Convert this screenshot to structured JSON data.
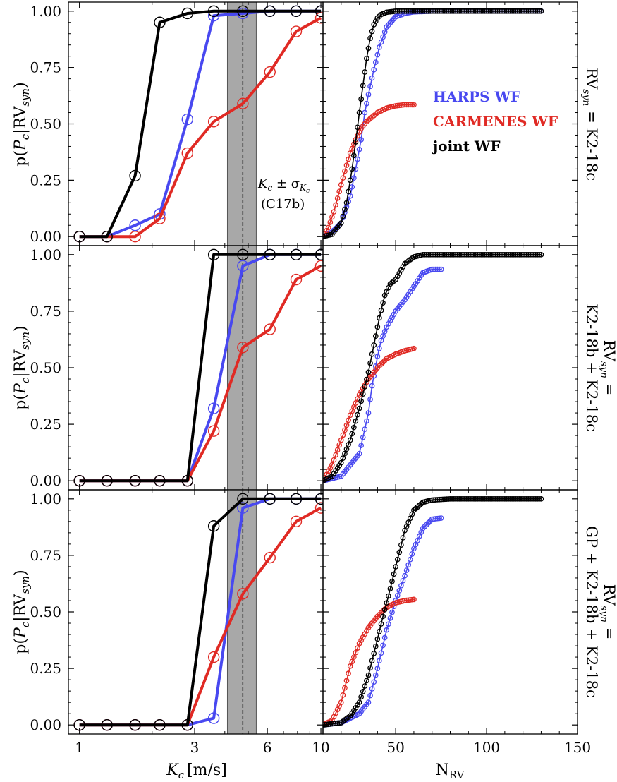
{
  "figure": {
    "left_xlabel": "K",
    "left_xlabel_sub": "c",
    "left_xlabel_unit": "[m/s]",
    "right_xlabel": "N",
    "right_xlabel_sub": "RV",
    "ylabel": {
      "p": "p(",
      "P": "P",
      "c": "c",
      "mid": "|RV",
      "syn": "syn",
      "close": ")"
    },
    "band_label_line1": {
      "K": "K",
      "c": "c",
      "pm": " ± σ",
      "Kc": "K",
      "c2": "c"
    },
    "band_label_line2": "(C17b)",
    "row_titles": [
      [
        "RV",
        "syn",
        " = K2-18c"
      ],
      [
        "RV",
        "syn",
        " =",
        "K2-18b + K2-18c"
      ],
      [
        "RV",
        "syn",
        " =",
        "GP + K2-18b + K2-18c"
      ]
    ]
  },
  "legend": [
    {
      "label": "HARPS WF",
      "color": "#4848f0"
    },
    {
      "label": "CARMENES WF",
      "color": "#e02a24"
    },
    {
      "label": "joint WF",
      "color": "#000000"
    }
  ],
  "chart_data": [
    {
      "type": "line",
      "panel": "left-top",
      "xscale": "log",
      "xlim": [
        0.9,
        10.2
      ],
      "ylim": [
        -0.04,
        1.04
      ],
      "xticks": [
        1,
        3,
        6,
        10
      ],
      "yticks": [
        "0.00",
        "0.25",
        "0.50",
        "0.75",
        "1.00"
      ],
      "band": [
        4.1,
        5.4
      ],
      "vline": 4.75,
      "series": [
        {
          "name": "HARPS WF",
          "color": "#4848f0",
          "x": [
            1.0,
            1.3,
            1.7,
            2.15,
            2.8,
            3.6,
            4.75,
            6.15,
            7.9,
            10.0
          ],
          "y": [
            0.0,
            0.0,
            0.05,
            0.1,
            0.52,
            0.98,
            0.99,
            1.0,
            1.0,
            1.0
          ]
        },
        {
          "name": "CARMENES WF",
          "color": "#e02a24",
          "x": [
            1.0,
            1.3,
            1.7,
            2.15,
            2.8,
            3.6,
            4.75,
            6.15,
            7.9,
            10.0
          ],
          "y": [
            0.0,
            0.0,
            0.0,
            0.08,
            0.37,
            0.51,
            0.59,
            0.73,
            0.91,
            0.97
          ]
        },
        {
          "name": "joint WF",
          "color": "#000000",
          "x": [
            1.0,
            1.3,
            1.7,
            2.15,
            2.8,
            3.6,
            4.75,
            6.15,
            7.9,
            10.0
          ],
          "y": [
            0.0,
            0.0,
            0.27,
            0.95,
            0.99,
            1.0,
            1.0,
            1.0,
            1.0,
            1.0
          ]
        }
      ]
    },
    {
      "type": "line",
      "panel": "left-middle",
      "xscale": "log",
      "xlim": [
        0.9,
        10.2
      ],
      "ylim": [
        -0.04,
        1.04
      ],
      "xticks": [
        1,
        3,
        6,
        10
      ],
      "yticks": [
        "0.00",
        "0.25",
        "0.50",
        "0.75",
        "1.00"
      ],
      "band": [
        4.1,
        5.4
      ],
      "vline": 4.75,
      "series": [
        {
          "name": "HARPS WF",
          "color": "#4848f0",
          "x": [
            1.0,
            1.3,
            1.7,
            2.15,
            2.8,
            3.6,
            4.75,
            6.15,
            7.9,
            10.0
          ],
          "y": [
            0.0,
            0.0,
            0.0,
            0.0,
            0.0,
            0.32,
            0.95,
            1.0,
            1.0,
            1.0
          ]
        },
        {
          "name": "CARMENES WF",
          "color": "#e02a24",
          "x": [
            1.0,
            1.3,
            1.7,
            2.15,
            2.8,
            3.6,
            4.75,
            6.15,
            7.9,
            10.0
          ],
          "y": [
            0.0,
            0.0,
            0.0,
            0.0,
            0.0,
            0.22,
            0.59,
            0.67,
            0.89,
            0.95
          ]
        },
        {
          "name": "joint WF",
          "color": "#000000",
          "x": [
            1.0,
            1.3,
            1.7,
            2.15,
            2.8,
            3.6,
            4.75,
            6.15,
            7.9,
            10.0
          ],
          "y": [
            0.0,
            0.0,
            0.0,
            0.0,
            0.0,
            1.0,
            1.0,
            1.0,
            1.0,
            1.0
          ]
        }
      ]
    },
    {
      "type": "line",
      "panel": "left-bottom",
      "xscale": "log",
      "xlim": [
        0.9,
        10.2
      ],
      "ylim": [
        -0.04,
        1.04
      ],
      "xticks": [
        1,
        3,
        6,
        10
      ],
      "yticks": [
        "0.00",
        "0.25",
        "0.50",
        "0.75",
        "1.00"
      ],
      "band": [
        4.1,
        5.4
      ],
      "vline": 4.75,
      "series": [
        {
          "name": "HARPS WF",
          "color": "#4848f0",
          "x": [
            1.0,
            1.3,
            1.7,
            2.15,
            2.8,
            3.6,
            4.75,
            6.15,
            7.9,
            10.0
          ],
          "y": [
            0.0,
            0.0,
            0.0,
            0.0,
            0.0,
            0.03,
            0.96,
            1.0,
            1.0,
            1.0
          ]
        },
        {
          "name": "CARMENES WF",
          "color": "#e02a24",
          "x": [
            1.0,
            1.3,
            1.7,
            2.15,
            2.8,
            3.6,
            4.75,
            6.15,
            7.9,
            10.0
          ],
          "y": [
            0.0,
            0.0,
            0.0,
            0.0,
            0.0,
            0.3,
            0.58,
            0.74,
            0.9,
            0.96
          ]
        },
        {
          "name": "joint WF",
          "color": "#000000",
          "x": [
            1.0,
            1.3,
            1.7,
            2.15,
            2.8,
            3.6,
            4.75,
            6.15,
            7.9,
            10.0
          ],
          "y": [
            0.0,
            0.0,
            0.0,
            0.0,
            0.0,
            0.88,
            1.0,
            1.0,
            1.0,
            1.0
          ]
        }
      ]
    },
    {
      "type": "line",
      "panel": "right-top",
      "xlim": [
        10,
        150
      ],
      "ylim": [
        -0.04,
        1.04
      ],
      "xticks": [
        50,
        100,
        150
      ],
      "series": [
        {
          "name": "HARPS WF",
          "color": "#4848f0",
          "x": [
            10,
            15,
            20,
            25,
            28,
            31,
            33,
            35,
            38,
            41,
            45,
            50,
            55,
            60,
            70,
            80,
            100,
            130
          ],
          "y": [
            0.0,
            0.02,
            0.06,
            0.18,
            0.3,
            0.43,
            0.55,
            0.63,
            0.74,
            0.84,
            0.93,
            0.975,
            0.99,
            0.997,
            1.0,
            1.0,
            1.0,
            1.0
          ]
        },
        {
          "name": "CARMENES WF",
          "color": "#e02a24",
          "x": [
            10,
            13,
            16,
            19,
            22,
            25,
            28,
            31,
            34,
            37,
            40,
            45,
            50,
            55,
            60
          ],
          "y": [
            0.0,
            0.04,
            0.11,
            0.2,
            0.29,
            0.37,
            0.43,
            0.48,
            0.51,
            0.53,
            0.55,
            0.57,
            0.58,
            0.585,
            0.585
          ]
        },
        {
          "name": "joint WF",
          "color": "#000000",
          "x": [
            10,
            15,
            20,
            23,
            26,
            28,
            30,
            32,
            34,
            36,
            38,
            40,
            42,
            45,
            50,
            55,
            60,
            80,
            100,
            130
          ],
          "y": [
            0.0,
            0.01,
            0.06,
            0.15,
            0.3,
            0.42,
            0.55,
            0.67,
            0.79,
            0.88,
            0.94,
            0.97,
            0.985,
            0.995,
            1.0,
            1.0,
            1.0,
            1.0,
            1.0,
            1.0
          ]
        }
      ]
    },
    {
      "type": "line",
      "panel": "right-middle",
      "xlim": [
        10,
        150
      ],
      "ylim": [
        -0.04,
        1.04
      ],
      "xticks": [
        50,
        100,
        150
      ],
      "series": [
        {
          "name": "HARPS WF",
          "color": "#4848f0",
          "x": [
            10,
            20,
            30,
            35,
            37,
            40,
            42,
            45,
            50,
            55,
            60,
            65,
            70,
            75
          ],
          "y": [
            0.0,
            0.02,
            0.12,
            0.3,
            0.42,
            0.55,
            0.62,
            0.68,
            0.75,
            0.8,
            0.86,
            0.92,
            0.935,
            0.935
          ]
        },
        {
          "name": "CARMENES WF",
          "color": "#e02a24",
          "x": [
            10,
            15,
            20,
            25,
            30,
            35,
            40,
            45,
            50,
            55,
            60
          ],
          "y": [
            0.0,
            0.07,
            0.18,
            0.29,
            0.38,
            0.45,
            0.5,
            0.54,
            0.56,
            0.575,
            0.585
          ]
        },
        {
          "name": "joint WF",
          "color": "#000000",
          "x": [
            10,
            15,
            20,
            25,
            30,
            35,
            38,
            41,
            44,
            47,
            50,
            55,
            60,
            65,
            70,
            80,
            100,
            130
          ],
          "y": [
            0.0,
            0.02,
            0.08,
            0.18,
            0.32,
            0.48,
            0.6,
            0.72,
            0.82,
            0.87,
            0.89,
            0.96,
            0.99,
            1.0,
            1.0,
            1.0,
            1.0,
            1.0
          ]
        }
      ]
    },
    {
      "type": "line",
      "panel": "right-bottom",
      "xlim": [
        10,
        150
      ],
      "ylim": [
        -0.04,
        1.04
      ],
      "xticks": [
        50,
        100,
        150
      ],
      "series": [
        {
          "name": "HARPS WF",
          "color": "#4848f0",
          "x": [
            10,
            20,
            30,
            35,
            40,
            45,
            50,
            55,
            60,
            65,
            70,
            75
          ],
          "y": [
            0.0,
            0.01,
            0.05,
            0.1,
            0.25,
            0.42,
            0.55,
            0.66,
            0.78,
            0.87,
            0.91,
            0.915
          ]
        },
        {
          "name": "CARMENES WF",
          "color": "#e02a24",
          "x": [
            10,
            15,
            20,
            25,
            30,
            35,
            40,
            45,
            50,
            55,
            60
          ],
          "y": [
            0.0,
            0.02,
            0.1,
            0.26,
            0.36,
            0.43,
            0.48,
            0.52,
            0.54,
            0.55,
            0.555
          ]
        },
        {
          "name": "joint WF",
          "color": "#000000",
          "x": [
            10,
            20,
            25,
            30,
            35,
            40,
            43,
            46,
            50,
            55,
            60,
            65,
            70,
            80,
            100,
            130
          ],
          "y": [
            0.0,
            0.01,
            0.04,
            0.1,
            0.22,
            0.38,
            0.48,
            0.57,
            0.7,
            0.86,
            0.95,
            0.985,
            0.995,
            1.0,
            1.0,
            1.0
          ]
        }
      ]
    }
  ]
}
